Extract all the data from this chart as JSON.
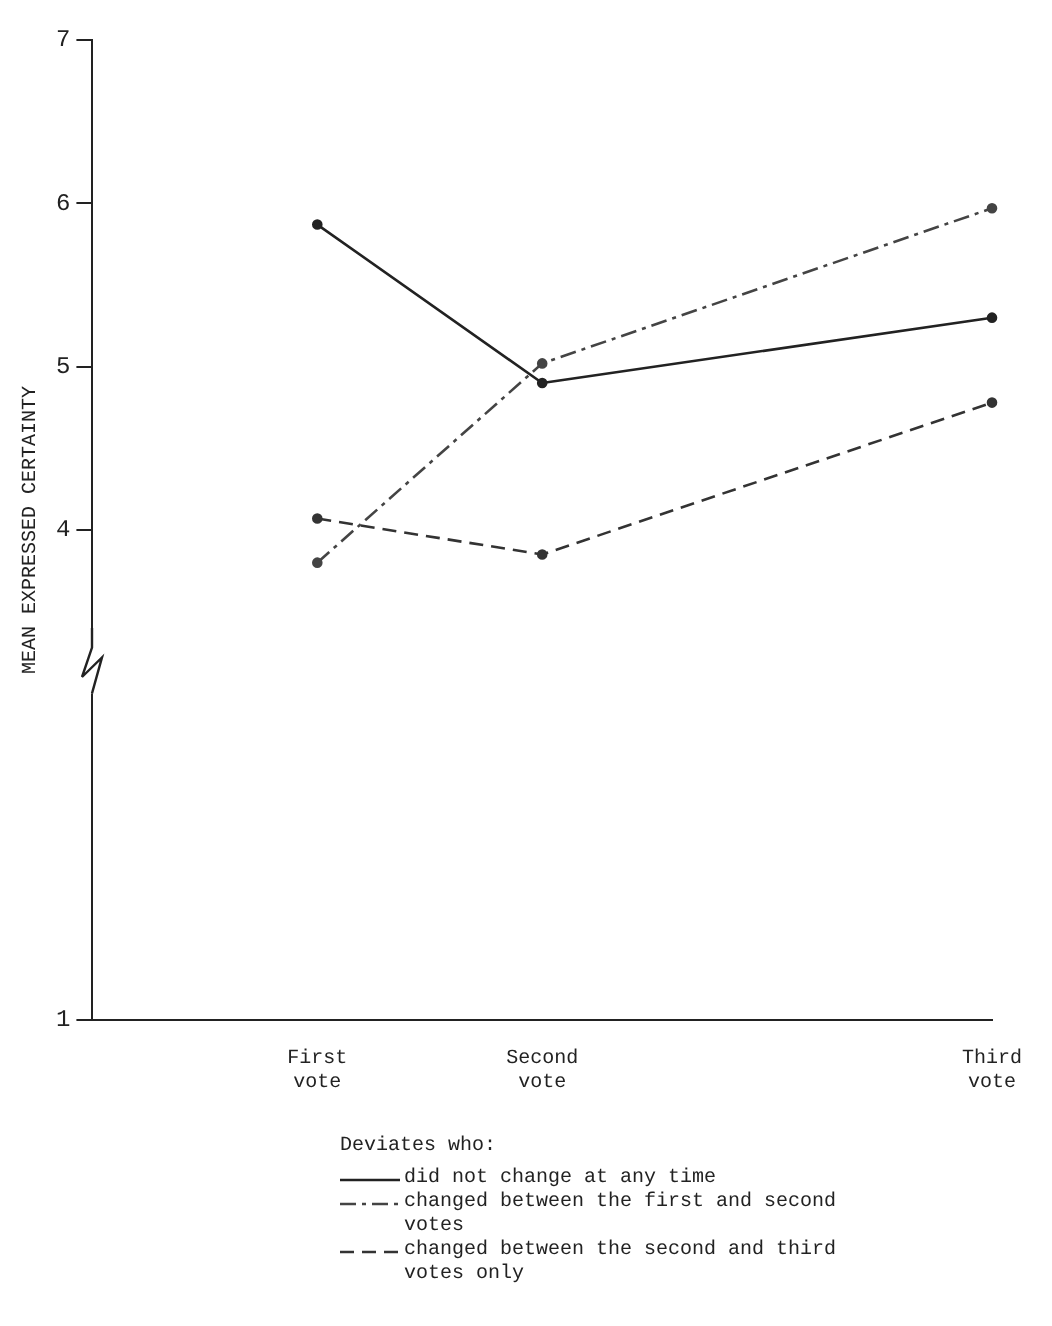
{
  "chart_data": {
    "type": "line",
    "ylabel": "MEAN EXPRESSED CERTAINTY",
    "legend_title": "Deviates who:",
    "categories": [
      null,
      "First vote",
      "Second vote",
      null,
      "Third vote"
    ],
    "series": [
      {
        "name": "did not change at any time",
        "color": "#222222",
        "line_style": "solid",
        "values": [
          null,
          5.87,
          4.9,
          null,
          5.3
        ]
      },
      {
        "name": "changed between the first and second votes",
        "color": "#444444",
        "line_style": "dotted",
        "values": [
          null,
          3.8,
          5.02,
          null,
          5.97
        ]
      },
      {
        "name": "changed between the second and third votes only",
        "color": "#333333",
        "line_style": "dashed",
        "values": [
          null,
          4.07,
          3.85,
          null,
          4.78
        ]
      }
    ],
    "ylim": [
      1,
      7
    ],
    "yticks": [
      1,
      4,
      5,
      6,
      7
    ],
    "grid": false,
    "marker": "circle",
    "legend": "bottom"
  }
}
